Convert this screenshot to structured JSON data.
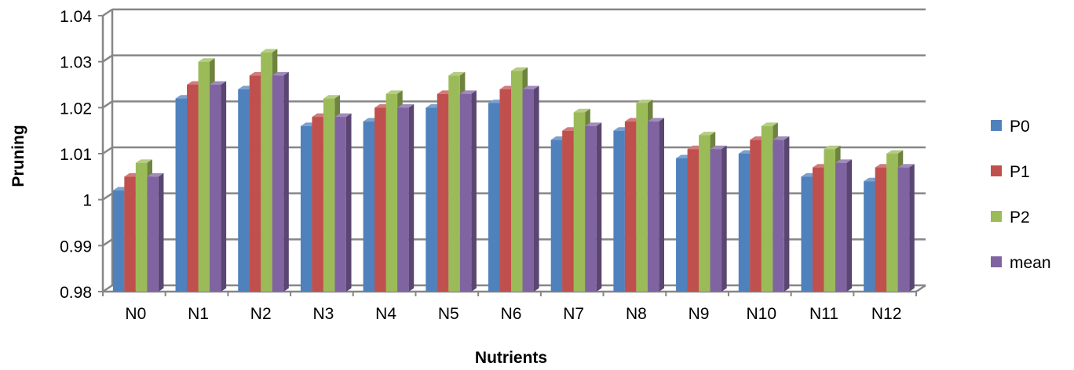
{
  "chart_data": {
    "type": "bar",
    "title": "",
    "xlabel": "Nutrients",
    "ylabel": "Pruning",
    "categories": [
      "N0",
      "N1",
      "N2",
      "N3",
      "N4",
      "N5",
      "N6",
      "N7",
      "N8",
      "N9",
      "N10",
      "N11",
      "N12"
    ],
    "series": [
      {
        "name": "P0",
        "color": "#4F81BD",
        "values": [
          1.002,
          1.022,
          1.024,
          1.016,
          1.017,
          1.02,
          1.021,
          1.013,
          1.015,
          1.009,
          1.01,
          1.005,
          1.004
        ]
      },
      {
        "name": "P1",
        "color": "#C0504D",
        "values": [
          1.005,
          1.025,
          1.027,
          1.018,
          1.02,
          1.023,
          1.024,
          1.015,
          1.017,
          1.011,
          1.013,
          1.007,
          1.007
        ]
      },
      {
        "name": "P2",
        "color": "#9BBB59",
        "values": [
          1.008,
          1.03,
          1.032,
          1.022,
          1.023,
          1.027,
          1.028,
          1.019,
          1.021,
          1.014,
          1.016,
          1.011,
          1.01
        ]
      },
      {
        "name": "mean",
        "color": "#8064A2",
        "values": [
          1.005,
          1.025,
          1.027,
          1.018,
          1.02,
          1.023,
          1.024,
          1.016,
          1.017,
          1.011,
          1.013,
          1.008,
          1.007
        ]
      }
    ],
    "ylim": [
      0.98,
      1.04
    ],
    "yticks": [
      "0.98",
      "0.99",
      "1",
      "1.01",
      "1.02",
      "1.03",
      "1.04"
    ],
    "grid": true,
    "legend": "right",
    "style": "3d-clustered"
  }
}
